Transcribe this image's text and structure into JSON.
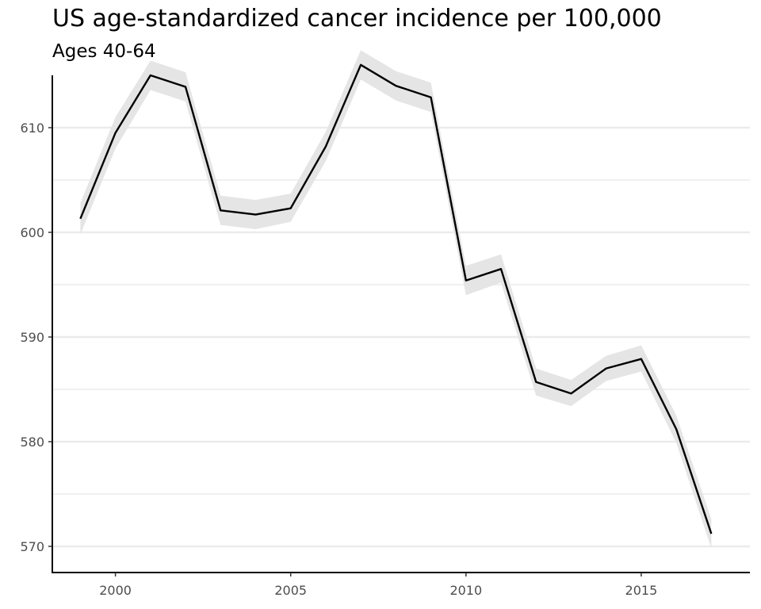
{
  "chart_data": {
    "type": "line",
    "title": "US age-standardized cancer incidence per 100,000",
    "subtitle": "Ages 40-64",
    "xlabel": "",
    "ylabel": "",
    "xlim": [
      1998.2,
      2018.1
    ],
    "ylim": [
      567.5,
      615
    ],
    "grid": "horizontal",
    "x_ticks": [
      2000,
      2005,
      2010,
      2015
    ],
    "y_ticks": [
      570,
      580,
      590,
      600,
      610
    ],
    "x": [
      1999,
      2000,
      2001,
      2002,
      2003,
      2004,
      2005,
      2006,
      2007,
      2008,
      2009,
      2010,
      2011,
      2012,
      2013,
      2014,
      2015,
      2016,
      2017
    ],
    "series": [
      {
        "values": [
          601.3,
          609.5,
          615.0,
          613.9,
          602.1,
          601.7,
          602.3,
          608.2,
          616.0,
          614.0,
          612.9,
          595.4,
          596.5,
          585.7,
          584.6,
          587.0,
          587.9,
          581.2,
          571.2
        ],
        "lower": [
          599.8,
          608.0,
          613.6,
          612.5,
          600.7,
          600.3,
          601.0,
          606.8,
          614.6,
          612.6,
          611.5,
          594.0,
          595.2,
          584.4,
          583.4,
          585.8,
          586.7,
          579.9,
          569.8
        ],
        "upper": [
          602.8,
          611.0,
          616.4,
          615.3,
          603.5,
          603.1,
          603.7,
          609.6,
          617.4,
          615.4,
          614.3,
          596.8,
          597.9,
          587.0,
          585.9,
          588.2,
          589.2,
          582.5,
          572.6
        ],
        "color": "#000000",
        "band_color": "#e5e5e5"
      }
    ]
  }
}
